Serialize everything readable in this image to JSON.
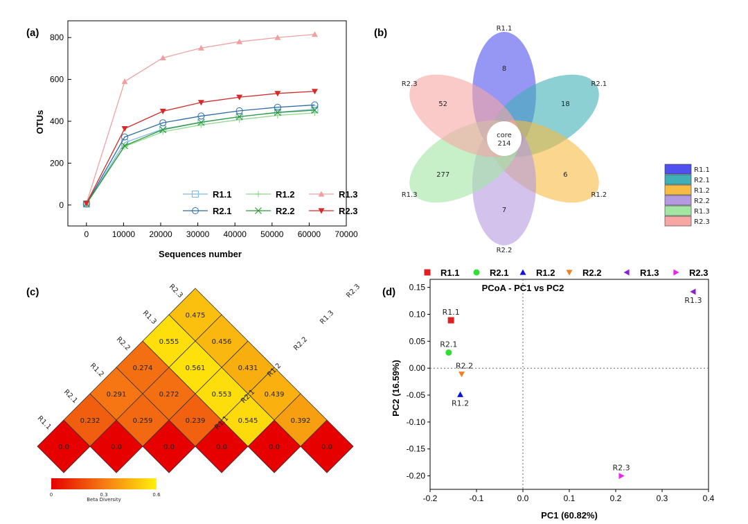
{
  "chart_data": [
    {
      "panel": "(a)",
      "type": "line",
      "xlabel": "Sequences number",
      "ylabel": "OTUs",
      "xlim": [
        -5000,
        70000
      ],
      "ylim": [
        -100,
        880
      ],
      "xticks": [
        0,
        10000,
        20000,
        30000,
        40000,
        50000,
        60000,
        70000
      ],
      "yticks": [
        0,
        200,
        400,
        600,
        800
      ],
      "x": [
        0,
        10300,
        20600,
        30900,
        41200,
        51500,
        61500
      ],
      "series": [
        {
          "name": "R1.1",
          "color": "#7fb8e6",
          "marker": "square-open",
          "values": [
            5,
            298,
            363,
            396,
            422,
            443,
            458
          ]
        },
        {
          "name": "R1.2",
          "color": "#8fd88f",
          "marker": "plus",
          "values": [
            5,
            280,
            350,
            383,
            408,
            428,
            440
          ]
        },
        {
          "name": "R1.3",
          "color": "#f0a0a0",
          "marker": "triangle-up",
          "values": [
            8,
            590,
            703,
            750,
            780,
            800,
            815
          ]
        },
        {
          "name": "R2.1",
          "color": "#2b6ca3",
          "marker": "circle-open",
          "values": [
            5,
            325,
            393,
            425,
            450,
            467,
            478
          ]
        },
        {
          "name": "R2.2",
          "color": "#2e9a3a",
          "marker": "x",
          "values": [
            5,
            283,
            360,
            395,
            422,
            442,
            453
          ]
        },
        {
          "name": "R2.3",
          "color": "#d42a2a",
          "marker": "triangle-down",
          "values": [
            8,
            365,
            448,
            490,
            515,
            533,
            543
          ]
        }
      ]
    },
    {
      "panel": "(b)",
      "type": "venn-flower",
      "core_label": "core",
      "core_value": "214",
      "petals": [
        {
          "name": "R1.1",
          "value": "8",
          "color": "#5050ee"
        },
        {
          "name": "R2.1",
          "value": "18",
          "color": "#3fb0b5"
        },
        {
          "name": "R1.2",
          "value": "6",
          "color": "#f6bb45"
        },
        {
          "name": "R2.2",
          "value": "7",
          "color": "#b49ae0"
        },
        {
          "name": "R1.3",
          "value": "277",
          "color": "#a3e6a3"
        },
        {
          "name": "R2.3",
          "value": "52",
          "color": "#f7a7a3"
        }
      ],
      "legend": [
        "R1.1",
        "R2.1",
        "R1.2",
        "R2.2",
        "R1.3",
        "R2.3"
      ]
    },
    {
      "panel": "(c)",
      "type": "heatmap",
      "triangle": true,
      "samples": [
        "R1.1",
        "R2.1",
        "R1.2",
        "R2.2",
        "R1.3",
        "R2.3"
      ],
      "diagonal": [
        "0.0",
        "0.0",
        "0.0",
        "0.0",
        "0.0",
        "0.0"
      ],
      "rows": [
        [
          "0.232",
          "0.259",
          "0.239",
          "0.545",
          "0.392"
        ],
        [
          "0.291",
          "0.272",
          "0.553",
          "0.439"
        ],
        [
          "0.274",
          "0.561",
          "0.431"
        ],
        [
          "0.555",
          "0.456"
        ],
        [
          "0.475"
        ]
      ],
      "colorbar": {
        "min": "0",
        "mid": "0.3",
        "max": "0.6",
        "label": "Beta Diversity"
      }
    },
    {
      "panel": "(d)",
      "type": "scatter",
      "title": "PCoA - PC1 vs PC2",
      "xlabel": "PC1 (60.82%)",
      "ylabel": "PC2 (16.59%)",
      "xlim": [
        -0.2,
        0.4
      ],
      "ylim": [
        -0.225,
        0.165
      ],
      "xticks": [
        "-0.2",
        "-0.1",
        "0.0",
        "0.1",
        "0.2",
        "0.3",
        "0.4"
      ],
      "yticks": [
        "0.15",
        "0.10",
        "0.05",
        "0.00",
        "-0.05",
        "-0.10",
        "-0.15",
        "-0.20"
      ],
      "points": [
        {
          "name": "R1.1",
          "x": -0.155,
          "y": 0.089,
          "color": "#e02020",
          "marker": "square"
        },
        {
          "name": "R2.1",
          "x": -0.16,
          "y": 0.029,
          "color": "#30e030",
          "marker": "circle"
        },
        {
          "name": "R1.2",
          "x": -0.135,
          "y": -0.049,
          "color": "#1010e0",
          "marker": "triangle-up"
        },
        {
          "name": "R2.2",
          "x": -0.132,
          "y": -0.011,
          "color": "#f08020",
          "marker": "triangle-down"
        },
        {
          "name": "R1.3",
          "x": 0.367,
          "y": 0.142,
          "color": "#8a20d0",
          "marker": "triangle-left"
        },
        {
          "name": "R2.3",
          "x": 0.212,
          "y": -0.2,
          "color": "#f020f0",
          "marker": "triangle-right"
        }
      ]
    }
  ]
}
